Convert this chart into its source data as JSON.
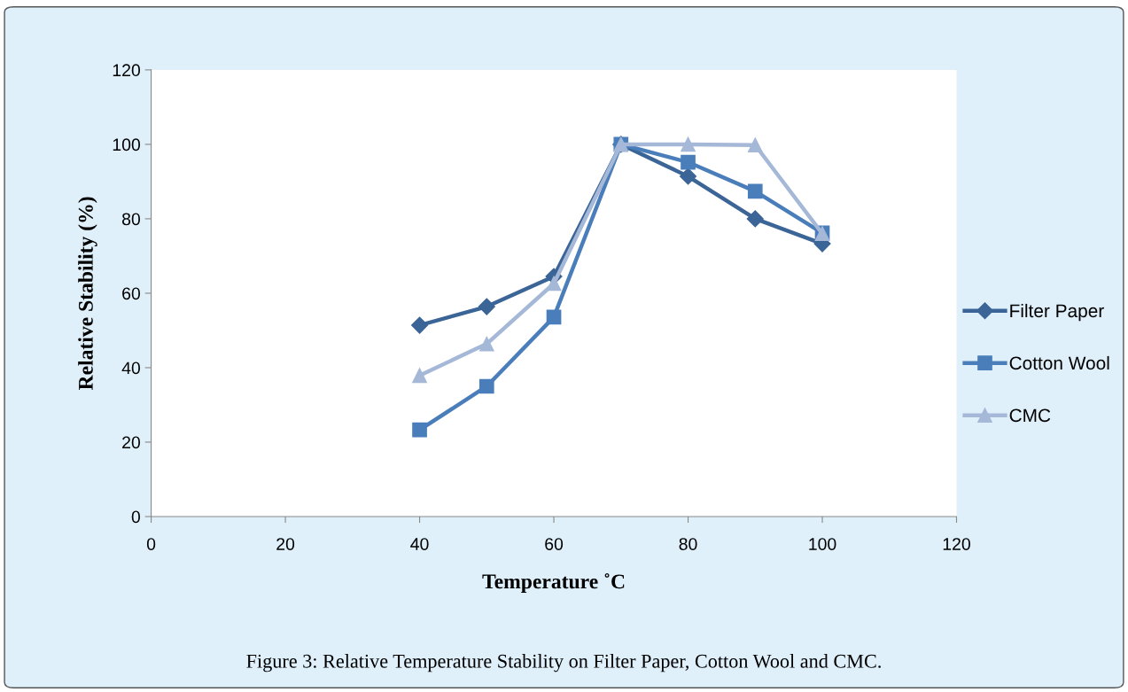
{
  "chart_data": {
    "type": "line",
    "xlabel": "Temperature ˚C",
    "ylabel": "Relative Stability (%)",
    "x": [
      40,
      50,
      60,
      70,
      80,
      90,
      100
    ],
    "series": [
      {
        "name": "Filter Paper",
        "color": "#3b6497",
        "marker": "diamond",
        "values": [
          51.4,
          56.4,
          64.5,
          100,
          91.4,
          80,
          73.3
        ]
      },
      {
        "name": "Cotton Wool",
        "color": "#4a7ebb",
        "marker": "square",
        "values": [
          23.3,
          35,
          53.6,
          100,
          95.2,
          87.4,
          76.2
        ]
      },
      {
        "name": "CMC",
        "color": "#a5b8d8",
        "marker": "triangle",
        "values": [
          37.9,
          46.4,
          62.6,
          100,
          100,
          99.8,
          76
        ]
      }
    ],
    "xlim": [
      0,
      120
    ],
    "xticks": [
      0,
      20,
      40,
      60,
      80,
      100,
      120
    ],
    "ylim": [
      0,
      120
    ],
    "yticks": [
      0,
      20,
      40,
      60,
      80,
      100,
      120
    ],
    "grid": false,
    "legend": "right",
    "line_style": "solid",
    "annotations": [
      "Figure 3: Relative Temperature Stability on Filter Paper, Cotton Wool and CMC."
    ]
  }
}
